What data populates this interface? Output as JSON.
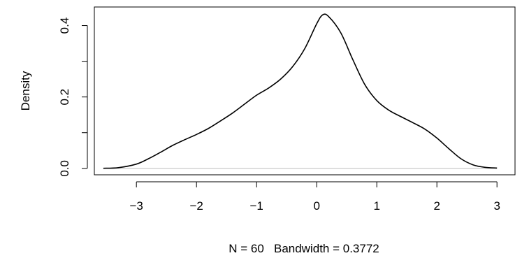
{
  "chart_data": {
    "type": "line",
    "title": "",
    "xlabel": "N = 60   Bandwidth = 0.3772",
    "ylabel": "Density",
    "xlim": [
      -3.7,
      3.3
    ],
    "ylim": [
      -0.018,
      0.452
    ],
    "x_ticks": [
      -3,
      -2,
      -1,
      0,
      1,
      2,
      3
    ],
    "x_tick_labels": [
      "−3",
      "−2",
      "−1",
      "0",
      "1",
      "2",
      "3"
    ],
    "y_ticks": [
      0,
      0.1,
      0.2,
      0.3,
      0.4
    ],
    "y_tick_labels": [
      "0.0",
      "",
      "0.2",
      "",
      "0.4"
    ],
    "baseline": 0,
    "grid": false,
    "legend": "none",
    "colors": {
      "line": "#000000",
      "baseline": "#bebebe",
      "axes": "#000000"
    },
    "series": [
      {
        "x": [
          -3.55,
          -3.3,
          -3.0,
          -2.8,
          -2.6,
          -2.4,
          -2.2,
          -2.0,
          -1.8,
          -1.6,
          -1.4,
          -1.2,
          -1.0,
          -0.8,
          -0.6,
          -0.4,
          -0.2,
          0.0,
          0.1,
          0.2,
          0.4,
          0.6,
          0.8,
          1.0,
          1.2,
          1.4,
          1.6,
          1.8,
          2.0,
          2.2,
          2.4,
          2.6,
          2.8,
          3.0
        ],
        "y": [
          0.0003,
          0.002,
          0.012,
          0.027,
          0.045,
          0.064,
          0.08,
          0.095,
          0.112,
          0.133,
          0.155,
          0.18,
          0.205,
          0.225,
          0.25,
          0.285,
          0.335,
          0.405,
          0.43,
          0.425,
          0.38,
          0.305,
          0.235,
          0.19,
          0.163,
          0.145,
          0.128,
          0.11,
          0.085,
          0.055,
          0.027,
          0.01,
          0.003,
          0.001
        ]
      }
    ]
  }
}
